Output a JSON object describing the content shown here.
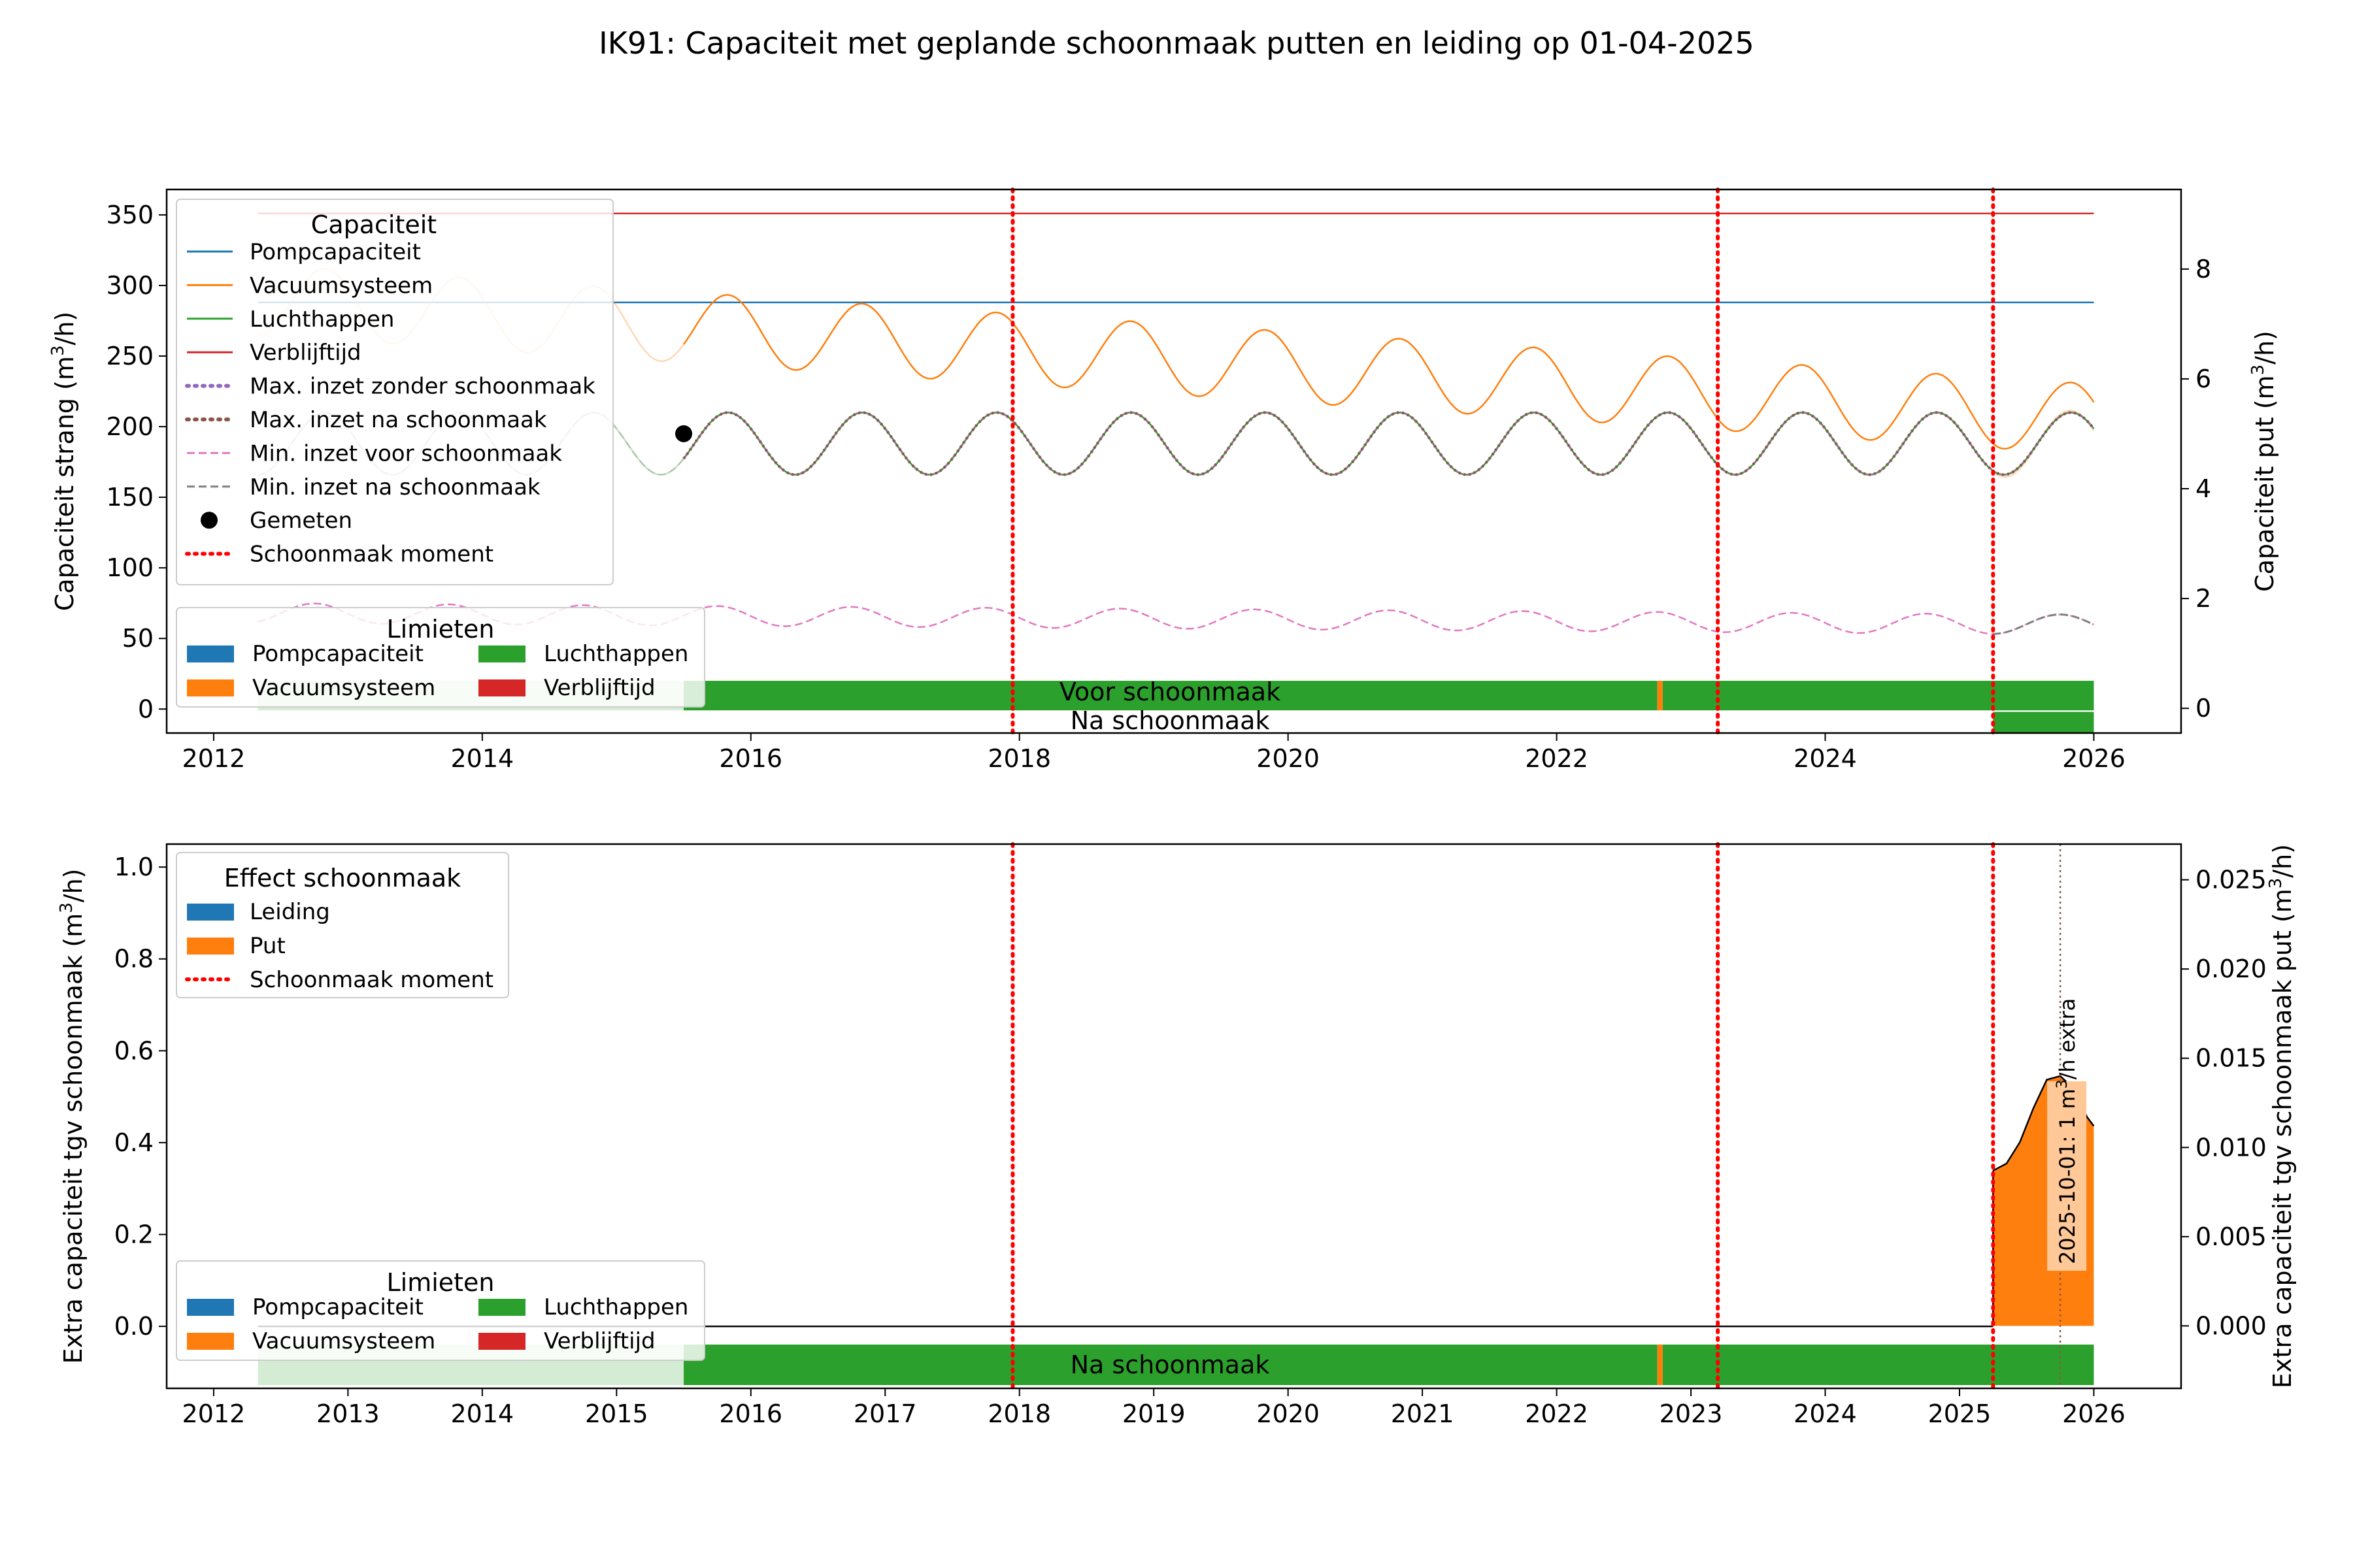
{
  "title": "IK91: Capaciteit met geplande schoonmaak putten en leiding op 01-04-2025",
  "colors": {
    "pomp": "#1f77b4",
    "vacuum": "#ff7f0e",
    "lucht": "#2ca02c",
    "verblijf": "#d62728",
    "max_zonder": "#9467bd",
    "max_na": "#8c564b",
    "min_voor": "#e377c2",
    "min_na": "#7f7f7f",
    "schoonmaak": "#ff0000",
    "lucht_light": "#d5ecd4",
    "vacuum_light": "#ffc896",
    "gemeten": "#000000"
  },
  "chart_data": [
    {
      "type": "line",
      "name": "top",
      "ylabel": "Capaciteit strang (m³/h)",
      "ylabel2": "Capaciteit put (m³/h)",
      "xlim": [
        2011.65,
        2026.65
      ],
      "ylim": [
        -17,
        368
      ],
      "ylim2": [
        -0.45,
        9.45
      ],
      "xticks": [
        "2012",
        "2014",
        "2016",
        "2018",
        "2020",
        "2022",
        "2024",
        "2026"
      ],
      "yticks": [
        "0",
        "50",
        "100",
        "150",
        "200",
        "250",
        "300",
        "350"
      ],
      "yticks2": [
        "0",
        "2",
        "4",
        "6",
        "8"
      ],
      "x_range": [
        2012.33,
        2026.0
      ],
      "series": [
        {
          "name": "Pompcapaciteit",
          "color_key": "pomp",
          "dash": "solid",
          "approx": "constant 288"
        },
        {
          "name": "Vacuumsysteem",
          "color_key": "vacuum",
          "dash": "solid",
          "approx": "sinusoid, period 1 yr, mean ~290 in 2012 falling to ~205 in 2026, amplitude ~25; lighter before 2015.5 and after 2025.25"
        },
        {
          "name": "Luchthappen",
          "color_key": "lucht",
          "dash": "solid",
          "approx": "sinusoid, period 1 yr, mean ~188, amplitude ~22"
        },
        {
          "name": "Verblijftijd",
          "color_key": "verblijf",
          "dash": "solid",
          "approx": "constant 351"
        },
        {
          "name": "Max. inzet zonder schoonmaak",
          "color_key": "max_zonder",
          "dash": "dotted",
          "approx": "follows Luchthappen"
        },
        {
          "name": "Max. inzet na schoonmaak",
          "color_key": "max_na",
          "dash": "dotted",
          "approx": "follows Luchthappen"
        },
        {
          "name": "Min. inzet voor schoonmaak",
          "color_key": "min_voor",
          "dash": "dashed",
          "approx": "sinusoid, period 1 yr, mean ~68 falling to ~60, amplitude ~8"
        },
        {
          "name": "Min. inzet na schoonmaak",
          "color_key": "min_na",
          "dash": "dashed",
          "approx": "follows Luchthappen; follows Min. inzet after 2025.25"
        }
      ],
      "points": [
        {
          "name": "Gemeten",
          "x": 2015.5,
          "y": 195
        }
      ],
      "schoonmaak_x": [
        2017.95,
        2023.2,
        2025.25
      ],
      "bars": [
        {
          "label": "Voor schoonmaak",
          "segments": [
            {
              "from": 2012.33,
              "to": 2015.5,
              "color_key": "lucht_light"
            },
            {
              "from": 2015.5,
              "to": 2022.75,
              "color_key": "lucht"
            },
            {
              "from": 2022.75,
              "to": 2022.79,
              "color_key": "vacuum"
            },
            {
              "from": 2022.79,
              "to": 2026.0,
              "color_key": "lucht"
            }
          ]
        },
        {
          "label": "Na schoonmaak",
          "segments": [
            {
              "from": 2025.25,
              "to": 2026.0,
              "color_key": "lucht"
            }
          ]
        }
      ],
      "legend_capaciteit": {
        "title": "Capaciteit",
        "entries": [
          {
            "label": "Pompcapaciteit",
            "color_key": "pomp",
            "style": "solid"
          },
          {
            "label": "Vacuumsysteem",
            "color_key": "vacuum",
            "style": "solid"
          },
          {
            "label": "Luchthappen",
            "color_key": "lucht",
            "style": "solid"
          },
          {
            "label": "Verblijftijd",
            "color_key": "verblijf",
            "style": "solid"
          },
          {
            "label": "Max. inzet zonder schoonmaak",
            "color_key": "max_zonder",
            "style": "dotted"
          },
          {
            "label": "Max. inzet na schoonmaak",
            "color_key": "max_na",
            "style": "dotted"
          },
          {
            "label": "Min. inzet voor schoonmaak",
            "color_key": "min_voor",
            "style": "dashed"
          },
          {
            "label": "Min. inzet na schoonmaak",
            "color_key": "min_na",
            "style": "dashed"
          },
          {
            "label": "Gemeten",
            "color_key": "gemeten",
            "style": "dot"
          },
          {
            "label": "Schoonmaak moment",
            "color_key": "schoonmaak",
            "style": "dotted"
          }
        ]
      },
      "legend_limieten": {
        "title": "Limieten",
        "entries": [
          {
            "label": "Pompcapaciteit",
            "color_key": "pomp"
          },
          {
            "label": "Luchthappen",
            "color_key": "lucht"
          },
          {
            "label": "Vacuumsysteem",
            "color_key": "vacuum"
          },
          {
            "label": "Verblijftijd",
            "color_key": "verblijf"
          }
        ]
      }
    },
    {
      "type": "area",
      "name": "bottom",
      "ylabel": "Extra capaciteit tgv schoonmaak (m³/h)",
      "ylabel2": "Extra capaciteit tgv schoonmaak put (m³/h)",
      "xlim": [
        2011.65,
        2026.65
      ],
      "ylim": [
        -0.135,
        1.05
      ],
      "ylim2": [
        -0.0035,
        0.027
      ],
      "xticks": [
        "2012",
        "2013",
        "2014",
        "2015",
        "2016",
        "2017",
        "2018",
        "2019",
        "2020",
        "2021",
        "2022",
        "2023",
        "2024",
        "2025",
        "2026"
      ],
      "yticks": [
        "0.0",
        "0.2",
        "0.4",
        "0.6",
        "0.8",
        "1.0"
      ],
      "yticks2": [
        "0.000",
        "0.005",
        "0.010",
        "0.015",
        "0.020",
        "0.025"
      ],
      "extra_put": {
        "x": [
          2025.25,
          2025.35,
          2025.45,
          2025.55,
          2025.65,
          2025.75,
          2025.85,
          2025.95,
          2026.0
        ],
        "y": [
          0.0087,
          0.0091,
          0.0103,
          0.0122,
          0.0138,
          0.014,
          0.0133,
          0.0117,
          0.0112
        ]
      },
      "schoonmaak_x": [
        2017.95,
        2023.2,
        2025.25
      ],
      "annotation": {
        "x": 2025.75,
        "text": "2025-10-01: 1 m³/h extra"
      },
      "bars": [
        {
          "label": "Na schoonmaak",
          "segments": [
            {
              "from": 2012.33,
              "to": 2015.5,
              "color_key": "lucht_light"
            },
            {
              "from": 2015.5,
              "to": 2022.75,
              "color_key": "lucht"
            },
            {
              "from": 2022.75,
              "to": 2022.79,
              "color_key": "vacuum"
            },
            {
              "from": 2022.79,
              "to": 2026.0,
              "color_key": "lucht"
            }
          ]
        }
      ],
      "legend_effect": {
        "title": "Effect schoonmaak",
        "entries": [
          {
            "label": "Leiding",
            "color_key": "pomp",
            "style": "patch"
          },
          {
            "label": "Put",
            "color_key": "vacuum",
            "style": "patch"
          },
          {
            "label": "Schoonmaak moment",
            "color_key": "schoonmaak",
            "style": "dotted"
          }
        ]
      },
      "legend_limieten": {
        "title": "Limieten",
        "entries": [
          {
            "label": "Pompcapaciteit",
            "color_key": "pomp"
          },
          {
            "label": "Luchthappen",
            "color_key": "lucht"
          },
          {
            "label": "Vacuumsysteem",
            "color_key": "vacuum"
          },
          {
            "label": "Verblijftijd",
            "color_key": "verblijf"
          }
        ]
      }
    }
  ]
}
